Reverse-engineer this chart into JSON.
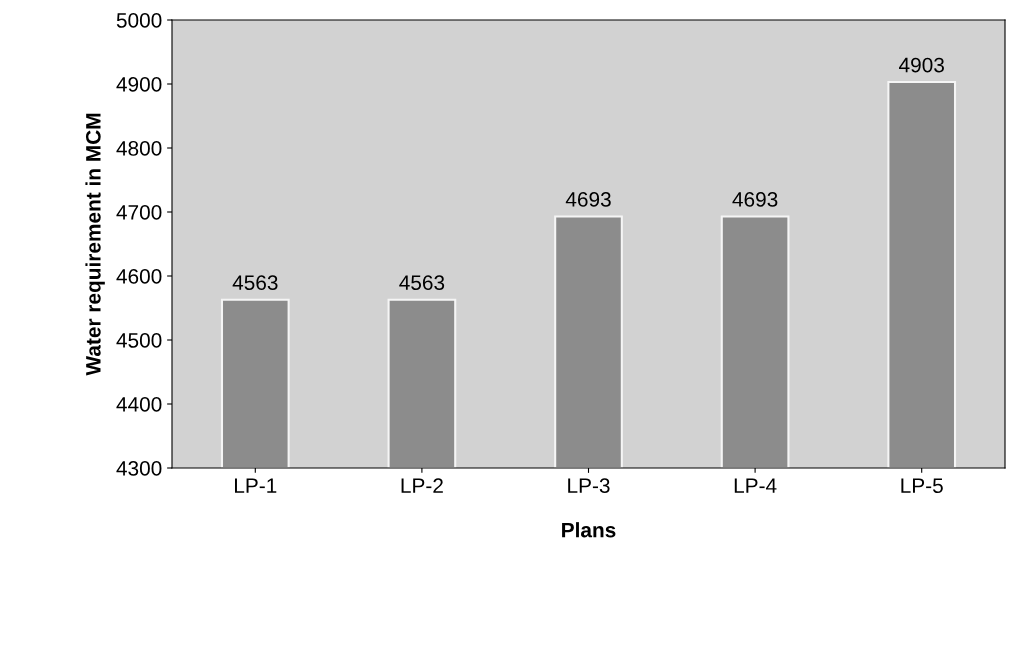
{
  "chart_data": {
    "type": "bar",
    "xlabel": "Plans",
    "ylabel": "Water requirement in MCM",
    "categories": [
      "LP-1",
      "LP-2",
      "LP-3",
      "LP-4",
      "LP-5"
    ],
    "values": [
      4563,
      4563,
      4693,
      4693,
      4903
    ],
    "color": "#8c8c8c",
    "ylim": [
      4300,
      5000
    ],
    "yticks": [
      4300,
      4400,
      4500,
      4600,
      4700,
      4800,
      4900,
      5000
    ],
    "grid": false,
    "data_labels": true
  }
}
